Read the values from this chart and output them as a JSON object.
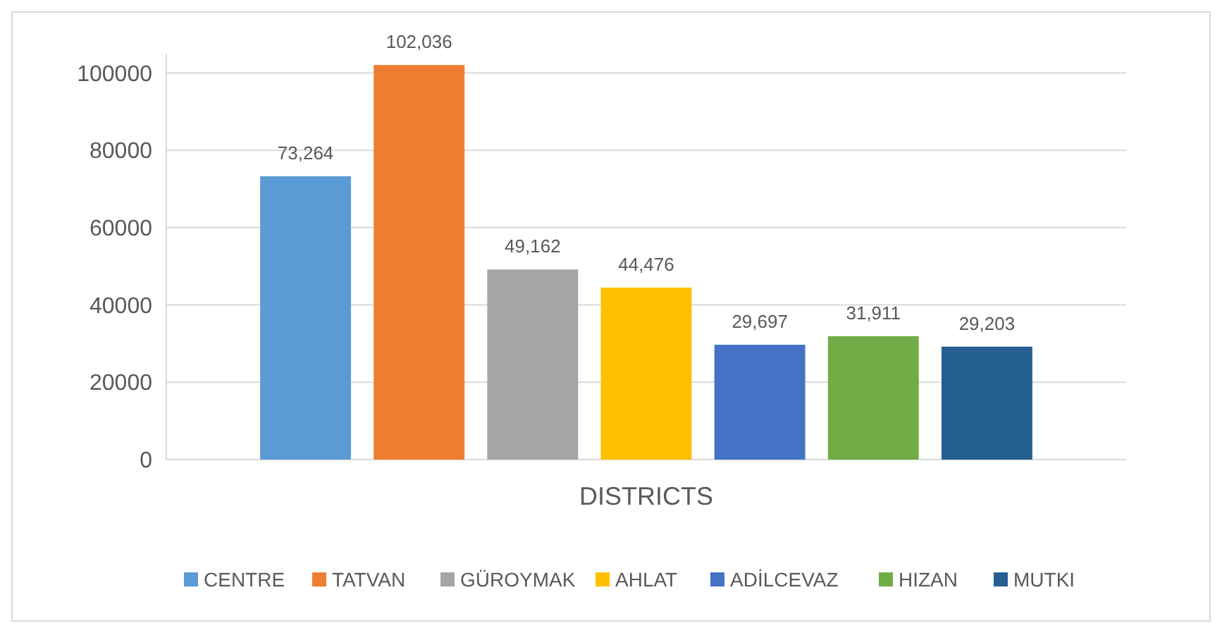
{
  "chart_data": {
    "type": "bar",
    "xlabel": "DISTRICTS",
    "categories": [
      null
    ],
    "series": [
      {
        "name": "CENTRE",
        "color": "#5b9bd5",
        "values": [
          73264
        ],
        "value_labels": [
          "73,264"
        ]
      },
      {
        "name": "TATVAN",
        "color": "#ed7d31",
        "values": [
          102036
        ],
        "value_labels": [
          "102,036"
        ]
      },
      {
        "name": "GÜROYMAK",
        "color": "#a5a5a5",
        "values": [
          49162
        ],
        "value_labels": [
          "49,162"
        ]
      },
      {
        "name": "AHLAT",
        "color": "#ffc000",
        "values": [
          44476
        ],
        "value_labels": [
          "44,476"
        ]
      },
      {
        "name": "ADİLCEVAZ",
        "color": "#4472c4",
        "values": [
          29697
        ],
        "value_labels": [
          "29,697"
        ]
      },
      {
        "name": "HIZAN",
        "color": "#70ad47",
        "values": [
          31911
        ],
        "value_labels": [
          "31,911"
        ]
      },
      {
        "name": "MUTKI",
        "color": "#255e91",
        "values": [
          29203
        ],
        "value_labels": [
          "29,203"
        ]
      }
    ],
    "ylim": [
      0,
      105000
    ],
    "yticks": [
      0,
      20000,
      40000,
      60000,
      80000,
      100000
    ],
    "grid": "y",
    "legend": "bottom"
  }
}
